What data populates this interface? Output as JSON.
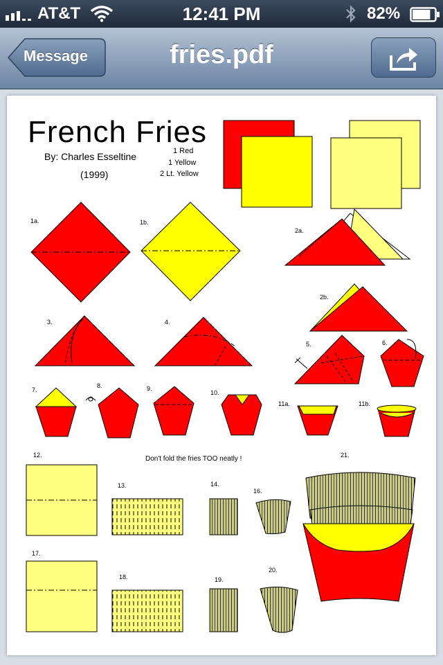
{
  "status_bar": {
    "carrier": "AT&T",
    "time": "12:41 PM",
    "battery_percent": "82%",
    "battery_level": 0.82
  },
  "nav": {
    "back_label": "Message",
    "title": "fries.pdf"
  },
  "document": {
    "title": "French Fries",
    "author": "By: Charles Esseltine",
    "year": "(1999)",
    "materials": [
      "1   Red",
      "1   Yellow",
      "2   Lt. Yellow"
    ],
    "note": "Don't fold the fries TOO neatly !",
    "step_labels": {
      "s1a": "1a.",
      "s1b": "1b.",
      "s2a": "2a.",
      "s2b": "2b.",
      "s3": "3.",
      "s4": "4.",
      "s5": "5.",
      "s6": "6.",
      "s7": "7.",
      "s8": "8.",
      "s9": "9.",
      "s10": "10.",
      "s11a": "11a.",
      "s11b": "11b.",
      "s12": "12.",
      "s13": "13.",
      "s14": "14.",
      "s16": "16.",
      "s17": "17.",
      "s18": "18.",
      "s19": "19.",
      "s20": "20.",
      "s21": "21."
    }
  },
  "colors": {
    "red": "#ff0000",
    "yellow": "#ffff00",
    "light_yellow": "#ffff80"
  }
}
